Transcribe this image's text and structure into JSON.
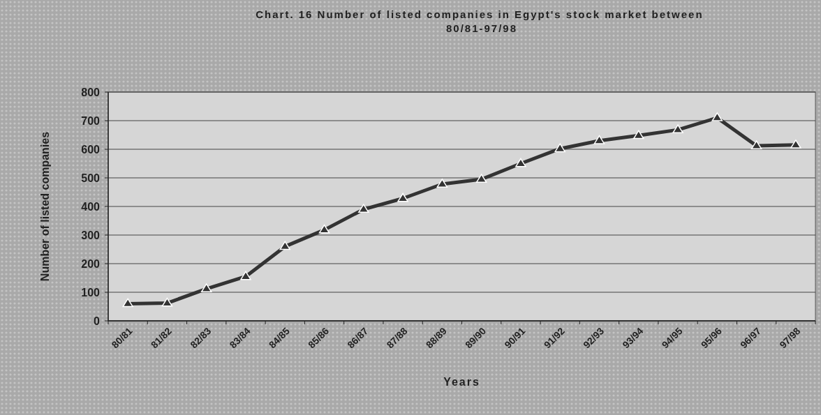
{
  "chart_data": {
    "type": "line",
    "title": "Chart. 16 Number of listed companies in Egypt's stock market   between 80/81-97/98",
    "xlabel": "Years",
    "ylabel": "Number of listed companies",
    "categories": [
      "80/81",
      "81/82",
      "82/83",
      "83/84",
      "84/85",
      "85/86",
      "86/87",
      "87/88",
      "88/89",
      "89/90",
      "90/91",
      "91/92",
      "92/93",
      "93/94",
      "94/95",
      "95/96",
      "96/97",
      "97/98"
    ],
    "series": [
      {
        "color": "#333333",
        "values": [
          60,
          62,
          112,
          155,
          260,
          318,
          390,
          428,
          478,
          495,
          550,
          602,
          630,
          648,
          668,
          710,
          612,
          615
        ]
      }
    ],
    "ylim": [
      0,
      800
    ],
    "yticks": [
      0,
      100,
      200,
      300,
      400,
      500,
      600,
      700,
      800
    ],
    "grid": "y",
    "marker": "triangle",
    "line_style": "solid"
  }
}
